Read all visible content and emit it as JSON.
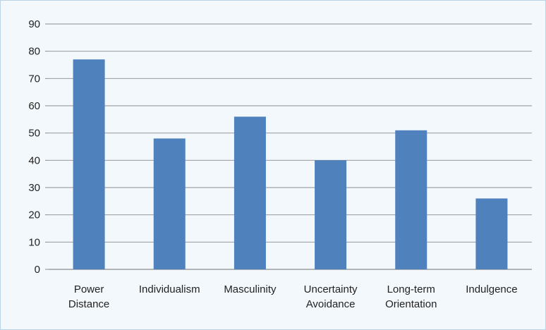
{
  "chart_data": {
    "type": "bar",
    "title": "",
    "xlabel": "",
    "ylabel": "",
    "ylim": [
      0,
      90
    ],
    "yticks": [
      0,
      10,
      20,
      30,
      40,
      50,
      60,
      70,
      80,
      90
    ],
    "grid": true,
    "legend": "none",
    "bar_color": "#4f81bd",
    "categories": [
      [
        "Power",
        "Distance"
      ],
      [
        "Individualism"
      ],
      [
        "Masculinity"
      ],
      [
        "Uncertainty",
        "Avoidance"
      ],
      [
        "Long-term",
        "Orientation"
      ],
      [
        "Indulgence"
      ]
    ],
    "values": [
      77,
      48,
      56,
      40,
      51,
      26
    ]
  }
}
